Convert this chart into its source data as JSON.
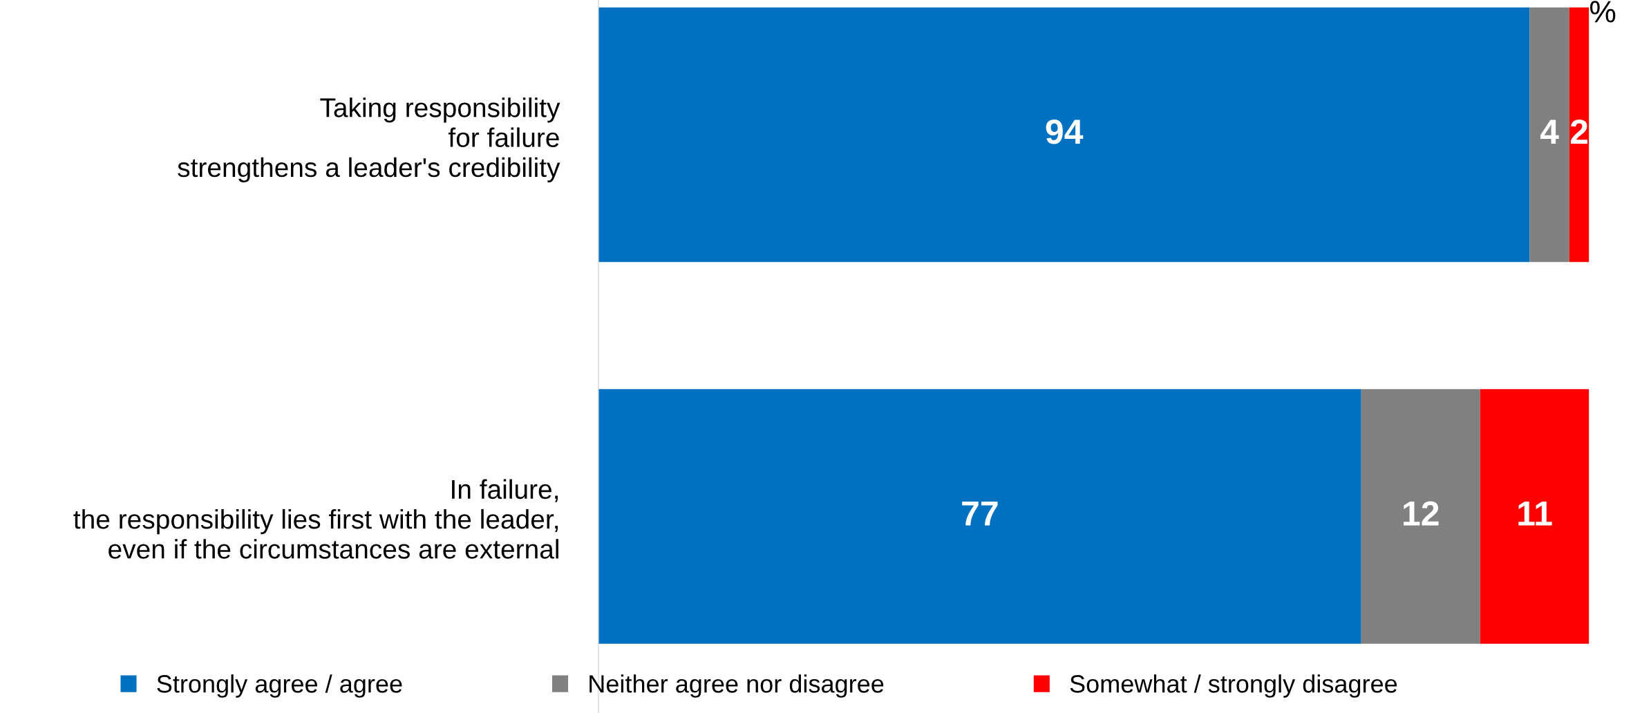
{
  "chart_data": {
    "type": "bar",
    "orientation": "horizontal",
    "stacked": true,
    "categories": [
      "Taking responsibility\nfor failure\nstrengthens a leader's credibility",
      "In failure,\nthe responsibility lies first with the leader,\neven if the circumstances are external"
    ],
    "series": [
      {
        "name": "Strongly agree / agree",
        "color": "#0070c0",
        "values": [
          94,
          77
        ]
      },
      {
        "name": "Neither agree nor disagree",
        "color": "#808080",
        "values": [
          4,
          12
        ]
      },
      {
        "name": "Somewhat / strongly disagree",
        "color": "#ff0000",
        "values": [
          2,
          11
        ]
      }
    ],
    "xlim": [
      0,
      100
    ],
    "data_labels": true,
    "legend": "bottom",
    "grid": false,
    "tick_labels": "y",
    "annotations": [
      "%"
    ]
  }
}
